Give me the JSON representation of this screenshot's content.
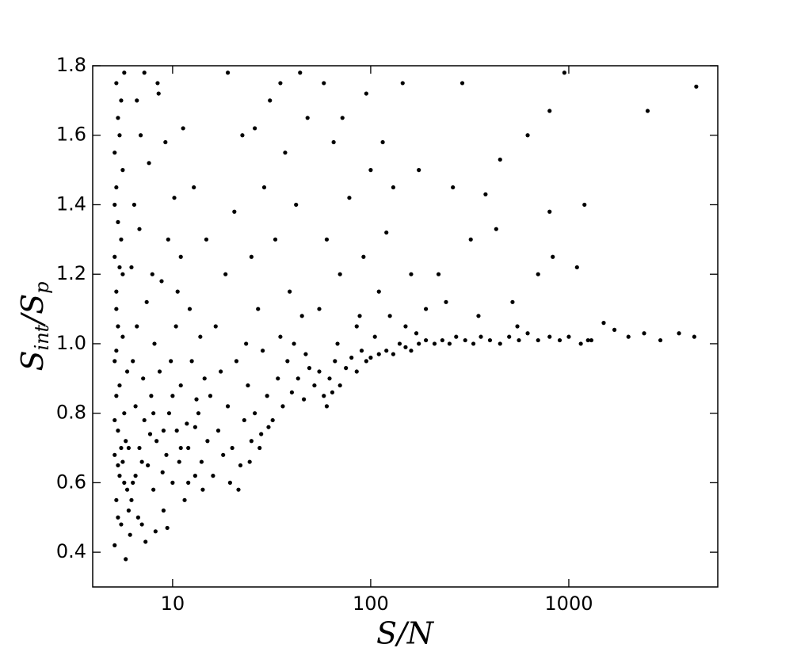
{
  "chart_data": {
    "type": "scatter",
    "x_label": "S/N",
    "y_label": [
      "S",
      "int",
      "/S",
      "p"
    ],
    "xlog": true,
    "xlim": [
      3.95,
      5650
    ],
    "xticks": [
      10,
      100,
      1000
    ],
    "ylim": [
      0.3,
      1.8
    ],
    "yticks": [
      0.4,
      0.6,
      0.8,
      {
        "value": 1,
        "label": "1.0"
      },
      1.2,
      1.4,
      1.6,
      1.8
    ],
    "color": "#000000",
    "x": [
      5.1,
      5.2,
      5.1,
      5.3,
      5.2,
      5.1,
      5.3,
      5.2,
      5.1,
      5.3,
      5.2,
      5.1,
      5.3,
      5.2,
      5.4,
      5.5,
      5.4,
      5.6,
      5.5,
      5.6,
      5.5,
      5.7,
      5.8,
      5.9,
      5.8,
      5.7,
      5.9,
      5.6,
      5.4,
      5.3,
      5.1,
      5.2,
      5.3,
      5.5,
      5.7,
      6.0,
      5.1,
      5.2,
      5.4,
      5.6,
      6.2,
      6.5,
      6.8,
      7,
      7.2,
      7.5,
      7.8,
      8,
      8.3,
      8.6,
      9,
      9.3,
      9.6,
      10,
      10.5,
      11,
      11.5,
      12,
      12.5,
      13,
      13.5,
      14,
      14.5,
      15,
      6.3,
      6.6,
      7.1,
      7.4,
      8.1,
      8.8,
      9.5,
      6.4,
      6.9,
      7.6,
      8.5,
      9.2,
      10.2,
      11,
      12.2,
      6.1,
      6.7,
      7.3,
      8.2,
      9.4,
      6.5,
      7.7,
      8.9,
      10.8,
      11.8,
      13.2,
      14.2,
      6.2,
      6.8,
      7.9,
      10.4,
      11.3,
      12.8,
      13.8,
      14.8,
      6.0,
      6.3,
      7.0,
      8.0,
      9.0,
      10.0,
      11.0,
      12.0,
      13.0,
      9.8,
      10.6,
      7.2,
      8.4,
      6.6,
      16,
      17,
      18,
      19,
      20,
      21,
      22,
      23,
      24,
      25,
      26,
      28,
      30,
      32,
      34,
      36,
      38,
      40,
      43,
      46,
      49,
      16.5,
      18.5,
      20.5,
      22.5,
      25,
      27,
      29,
      31,
      33,
      35,
      37,
      39,
      42,
      45,
      48,
      17.5,
      19.5,
      21.5,
      24.5,
      27.5,
      30.5,
      19,
      26,
      35,
      44,
      15.5,
      23.5,
      28.5,
      41,
      47,
      52,
      55,
      58,
      62,
      66,
      70,
      75,
      80,
      85,
      90,
      95,
      100,
      110,
      120,
      130,
      140,
      150,
      160,
      175,
      190,
      55,
      60,
      65,
      70,
      78,
      85,
      92,
      100,
      110,
      120,
      130,
      145,
      160,
      175,
      190,
      58,
      72,
      95,
      115,
      150,
      68,
      88,
      105,
      125,
      170,
      60,
      64,
      210,
      230,
      250,
      270,
      300,
      330,
      360,
      400,
      450,
      500,
      560,
      620,
      700,
      800,
      900,
      1000,
      1150,
      1300,
      1500,
      1700,
      2000,
      2400,
      2900,
      3600,
      4300,
      220,
      260,
      290,
      320,
      380,
      430,
      450,
      520,
      620,
      700,
      800,
      830,
      950,
      1100,
      1200,
      2500,
      4400,
      800,
      240,
      350,
      550,
      1250
    ],
    "y": [
      0.42,
      0.55,
      0.68,
      0.75,
      0.85,
      0.95,
      1.05,
      1.15,
      1.25,
      1.35,
      1.45,
      1.55,
      1.65,
      1.75,
      0.62,
      0.48,
      0.88,
      1.02,
      1.3,
      1.5,
      1.7,
      1.78,
      0.38,
      0.58,
      0.72,
      0.8,
      0.92,
      1.2,
      1.6,
      0.5,
      1.4,
      1.1,
      0.65,
      0.7,
      0.6,
      0.52,
      0.78,
      0.98,
      1.22,
      0.66,
      0.55,
      0.62,
      0.7,
      0.48,
      0.78,
      0.65,
      0.85,
      0.58,
      0.72,
      0.92,
      0.52,
      0.68,
      0.8,
      0.6,
      0.75,
      0.88,
      0.55,
      0.7,
      0.95,
      0.62,
      0.8,
      0.66,
      0.9,
      0.72,
      0.95,
      1.05,
      0.9,
      1.12,
      1.0,
      1.18,
      1.3,
      1.4,
      1.6,
      1.52,
      1.72,
      1.58,
      1.42,
      1.25,
      1.1,
      0.45,
      0.5,
      0.43,
      0.46,
      0.47,
      0.82,
      0.74,
      0.63,
      0.66,
      0.77,
      0.84,
      0.58,
      1.22,
      1.33,
      1.2,
      1.05,
      1.62,
      1.45,
      1.02,
      1.3,
      0.7,
      0.6,
      0.66,
      0.8,
      0.75,
      0.85,
      0.7,
      0.6,
      0.76,
      0.95,
      1.15,
      1.78,
      1.75,
      1.7,
      0.62,
      0.75,
      0.68,
      0.82,
      0.7,
      0.95,
      0.65,
      0.78,
      0.88,
      0.72,
      0.8,
      0.74,
      0.85,
      0.78,
      0.9,
      0.82,
      0.95,
      0.86,
      0.9,
      0.84,
      0.93,
      1.05,
      1.2,
      1.38,
      1.6,
      1.25,
      1.1,
      1.45,
      1.7,
      1.3,
      1.02,
      1.55,
      1.15,
      1.4,
      1.08,
      1.65,
      0.92,
      0.6,
      0.58,
      0.66,
      0.7,
      0.76,
      1.78,
      1.62,
      1.75,
      1.78,
      0.85,
      1.0,
      0.98,
      1.0,
      0.97,
      0.88,
      0.92,
      0.85,
      0.9,
      0.95,
      0.88,
      0.93,
      0.96,
      0.92,
      0.98,
      0.95,
      0.96,
      0.97,
      0.98,
      0.97,
      1.0,
      0.99,
      0.98,
      1.0,
      1.01,
      1.1,
      1.3,
      1.58,
      1.2,
      1.42,
      1.05,
      1.25,
      1.5,
      1.15,
      1.32,
      1.45,
      1.75,
      1.2,
      1.5,
      1.1,
      1.75,
      1.65,
      1.72,
      1.58,
      1.05,
      1.0,
      1.08,
      1.02,
      1.08,
      1.03,
      0.82,
      0.86,
      1.0,
      1.01,
      1.0,
      1.02,
      1.01,
      1.0,
      1.02,
      1.01,
      1.0,
      1.02,
      1.01,
      1.03,
      1.01,
      1.02,
      1.01,
      1.02,
      1.0,
      1.01,
      1.06,
      1.04,
      1.02,
      1.03,
      1.01,
      1.03,
      1.02,
      1.2,
      1.45,
      1.75,
      1.3,
      1.43,
      1.33,
      1.53,
      1.12,
      1.6,
      1.2,
      1.38,
      1.25,
      1.78,
      1.22,
      1.4,
      1.67,
      1.74,
      1.67,
      1.12,
      1.08,
      1.05,
      1.01
    ]
  }
}
